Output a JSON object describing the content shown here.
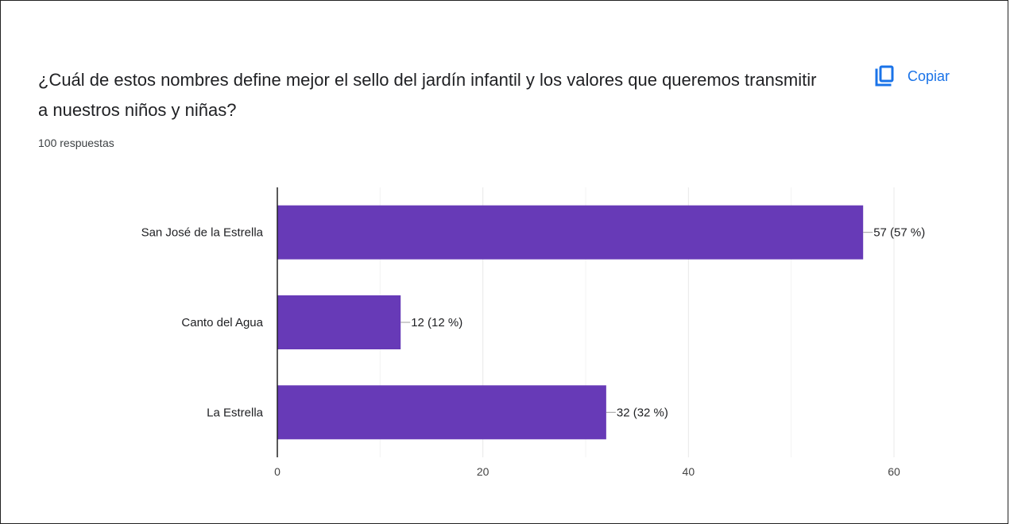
{
  "card": {
    "question": "¿Cuál de estos nombres define mejor el sello del jardín infantil y los valores que queremos transmitir a nuestros niños y niñas?",
    "responses": "100 respuestas",
    "copy_label": "Copiar",
    "copy_icon": "copy-icon"
  },
  "colors": {
    "bar": "#673ab7",
    "accent": "#1a73e8",
    "grid": "#e8e8e8",
    "axis": "#222222",
    "text": "#202124"
  },
  "chart_data": {
    "type": "bar",
    "orientation": "horizontal",
    "categories": [
      "San José de la Estrella",
      "Canto del Agua",
      "La Estrella"
    ],
    "values": [
      57,
      12,
      32
    ],
    "data_labels": [
      "57 (57 %)",
      "12 (12 %)",
      "32 (32 %)"
    ],
    "xlim": [
      0,
      60
    ],
    "xticks": [
      0,
      20,
      40,
      60
    ],
    "grid": true,
    "legend": false
  }
}
